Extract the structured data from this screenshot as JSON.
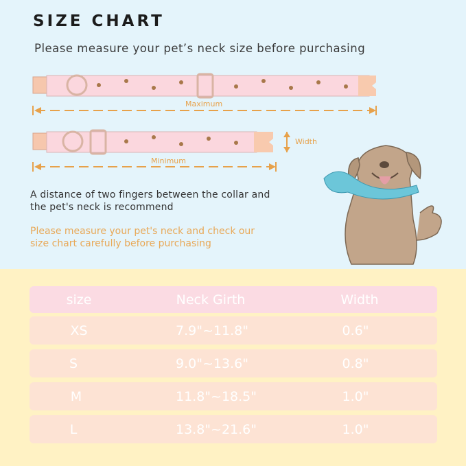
{
  "title": "SIZE CHART",
  "subtitle": "Please measure your pet’s neck size before purchasing",
  "diagram": {
    "maximum": "Maximum",
    "minimum": "Minimum",
    "width": "Width"
  },
  "note": [
    "A distance of two fingers between the collar and",
    "the pet's neck is recommend"
  ],
  "advice": [
    "Please measure your pet's neck and check our",
    "size chart carefully before purchasing"
  ],
  "colors": {
    "top_bg": "#e4f4fb",
    "bottom_bg": "#fff2c4",
    "accent": "#e8a857",
    "header_row": "#fbdbe3",
    "row": "#fde3d4"
  },
  "table": {
    "headers": [
      "size",
      "Neck Girth",
      "Width"
    ],
    "rows": [
      [
        "XS",
        "7.9\"~11.8\"",
        "0.6\""
      ],
      [
        "S",
        "9.0\"~13.6\"",
        "0.8\""
      ],
      [
        "M",
        "11.8\"~18.5\"",
        "1.0\""
      ],
      [
        "L",
        "13.8\"~21.6\"",
        "1.0\""
      ]
    ]
  }
}
